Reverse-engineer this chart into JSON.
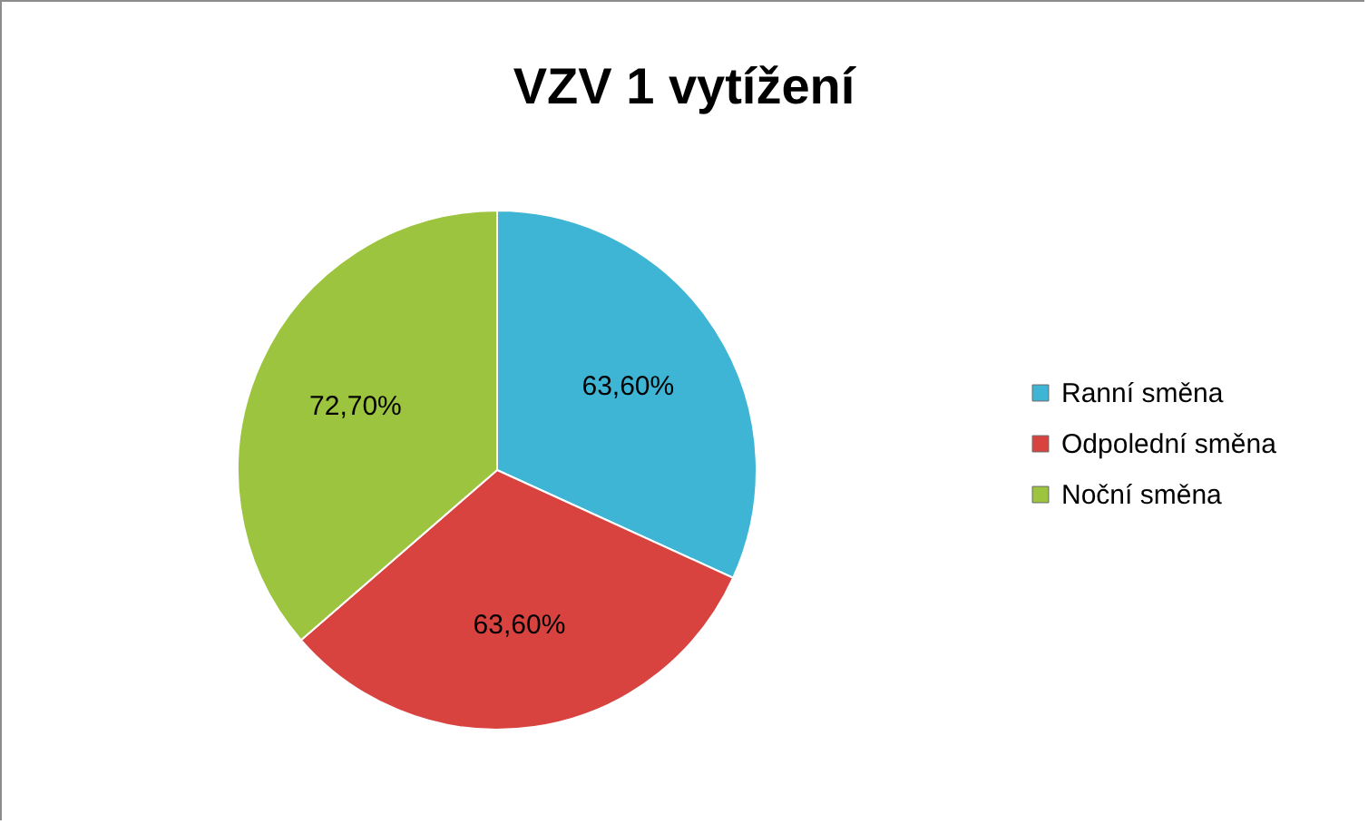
{
  "chart_data": {
    "type": "pie",
    "title": "VZV 1 vytížení",
    "categories": [
      "Ranní směna",
      "Odpolední směna",
      "Noční směna"
    ],
    "values": [
      63.6,
      63.6,
      72.7
    ],
    "colors": [
      "#3fb5d6",
      "#d8433f",
      "#9cc43e"
    ],
    "value_labels": [
      "63,60%",
      "63,60%",
      "72,70%"
    ],
    "legend": "right"
  }
}
